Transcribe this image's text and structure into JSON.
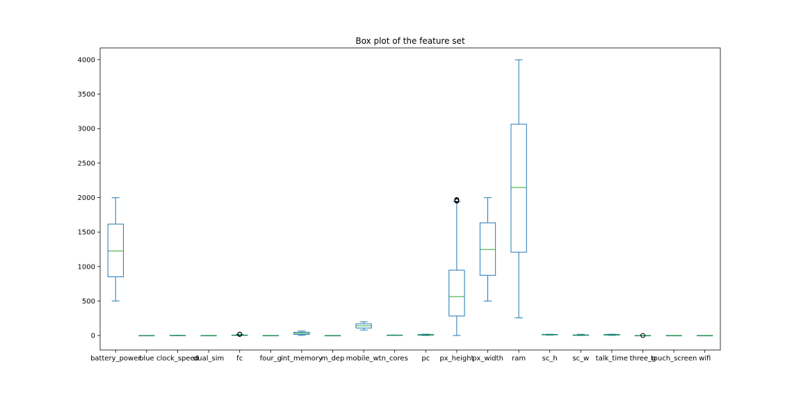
{
  "chart_data": {
    "type": "box",
    "title": "Box plot of the feature set",
    "xlabel": "",
    "ylabel": "",
    "ylim": [
      -210,
      4170
    ],
    "yticks": [
      0,
      500,
      1000,
      1500,
      2000,
      2500,
      3000,
      3500,
      4000
    ],
    "grid": false,
    "colors": {
      "box": "#1f77b4",
      "median": "#2ca02c",
      "flier": "#000000",
      "frame": "#000000"
    },
    "categories": [
      "battery_power",
      "blue",
      "clock_speed",
      "dual_sim",
      "fc",
      "four_g",
      "int_memory",
      "m_dep",
      "mobile_wt",
      "n_cores",
      "pc",
      "px_height",
      "px_width",
      "ram",
      "sc_h",
      "sc_w",
      "talk_time",
      "three_g",
      "touch_screen",
      "wifi"
    ],
    "boxes": [
      {
        "whislo": 501,
        "q1": 851,
        "med": 1226,
        "q3": 1615,
        "whishi": 1998,
        "fliers": []
      },
      {
        "whislo": 0,
        "q1": 0,
        "med": 0,
        "q3": 1,
        "whishi": 1,
        "fliers": []
      },
      {
        "whislo": 0.5,
        "q1": 0.7,
        "med": 1.5,
        "q3": 2.2,
        "whishi": 3.0,
        "fliers": []
      },
      {
        "whislo": 0,
        "q1": 0,
        "med": 1,
        "q3": 1,
        "whishi": 1,
        "fliers": []
      },
      {
        "whislo": 0,
        "q1": 1,
        "med": 3,
        "q3": 7,
        "whishi": 16,
        "fliers": [
          17,
          18,
          19
        ]
      },
      {
        "whislo": 0,
        "q1": 0,
        "med": 1,
        "q3": 1,
        "whishi": 1,
        "fliers": []
      },
      {
        "whislo": 2,
        "q1": 16,
        "med": 32,
        "q3": 48,
        "whishi": 64,
        "fliers": []
      },
      {
        "whislo": 0.1,
        "q1": 0.2,
        "med": 0.5,
        "q3": 0.8,
        "whishi": 1.0,
        "fliers": []
      },
      {
        "whislo": 80,
        "q1": 109,
        "med": 141,
        "q3": 170,
        "whishi": 200,
        "fliers": []
      },
      {
        "whislo": 1,
        "q1": 3,
        "med": 4,
        "q3": 7,
        "whishi": 8,
        "fliers": []
      },
      {
        "whislo": 0,
        "q1": 5,
        "med": 10,
        "q3": 15,
        "whishi": 20,
        "fliers": []
      },
      {
        "whislo": 0,
        "q1": 283,
        "med": 564,
        "q3": 947,
        "whishi": 1944,
        "fliers": [
          1949,
          1960,
          1970
        ]
      },
      {
        "whislo": 500,
        "q1": 874,
        "med": 1247,
        "q3": 1633,
        "whishi": 1998,
        "fliers": []
      },
      {
        "whislo": 256,
        "q1": 1208,
        "med": 2146,
        "q3": 3064,
        "whishi": 3998,
        "fliers": []
      },
      {
        "whislo": 5,
        "q1": 9,
        "med": 12,
        "q3": 16,
        "whishi": 19,
        "fliers": []
      },
      {
        "whislo": 0,
        "q1": 2,
        "med": 5,
        "q3": 9,
        "whishi": 18,
        "fliers": []
      },
      {
        "whislo": 2,
        "q1": 6,
        "med": 11,
        "q3": 16,
        "whishi": 20,
        "fliers": []
      },
      {
        "whislo": 1,
        "q1": 1,
        "med": 1,
        "q3": 1,
        "whishi": 1,
        "fliers": [
          0
        ]
      },
      {
        "whislo": 0,
        "q1": 0,
        "med": 1,
        "q3": 1,
        "whishi": 1,
        "fliers": []
      },
      {
        "whislo": 0,
        "q1": 0,
        "med": 1,
        "q3": 1,
        "whishi": 1,
        "fliers": []
      }
    ]
  }
}
